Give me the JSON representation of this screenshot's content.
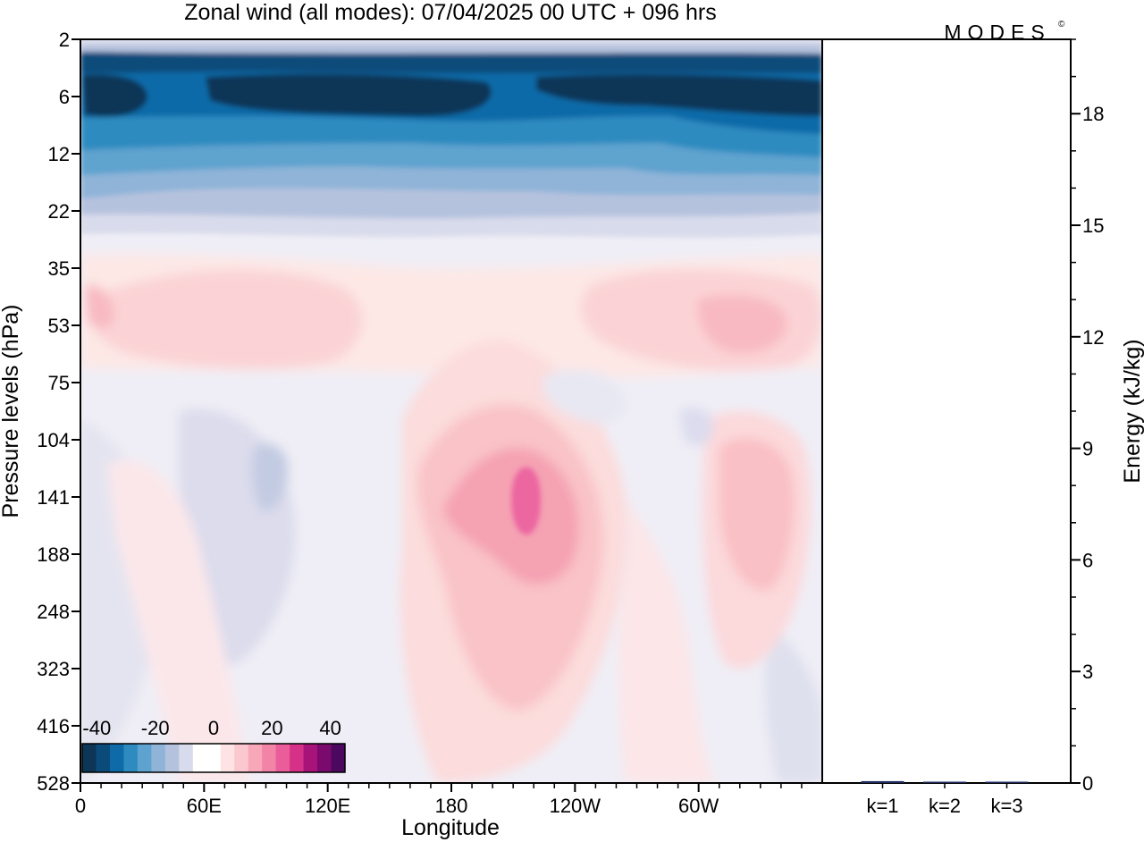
{
  "title": "Zonal wind (all modes):  07/04/2025  00 UTC  + 096 hrs",
  "brand": "MODES",
  "brand_mark": "©",
  "chart_data": [
    {
      "type": "heatmap",
      "title": "Zonal wind (all modes):  07/04/2025  00 UTC  + 096 hrs",
      "xlabel": "Longitude",
      "ylabel": "Pressure levels (hPa)",
      "x_ticks": [
        "0",
        "60E",
        "120E",
        "180",
        "120W",
        "60W"
      ],
      "x_tick_degrees": [
        0,
        60,
        120,
        180,
        240,
        300
      ],
      "x_range_degrees": [
        0,
        360
      ],
      "y_ticks": [
        "2",
        "6",
        "12",
        "22",
        "35",
        "53",
        "75",
        "104",
        "141",
        "188",
        "248",
        "323",
        "416",
        "528"
      ],
      "y_scale": "ordinal pressure levels, 2 hPa at top, 528 hPa at bottom",
      "colorbar": {
        "labels": [
          "-40",
          "-20",
          "0",
          "20",
          "40"
        ],
        "min": -45,
        "max": 45,
        "step": 5,
        "colors": [
          "#0d3556",
          "#0b4b7a",
          "#0e6ba8",
          "#2e8bc0",
          "#5ea3cf",
          "#8fb4d8",
          "#b5c2de",
          "#d8dbeb",
          "#ffffff",
          "#ffffff",
          "#fde3e4",
          "#fbc8cf",
          "#f8a7b8",
          "#f284a8",
          "#ea5c9a",
          "#d53189",
          "#a8137a",
          "#7a0a6e",
          "#4c075f"
        ]
      },
      "features": [
        {
          "description": "easterly jet in upper stratosphere",
          "pressure_hPa": 6,
          "value": -40
        },
        {
          "description": "westerly core near 160W",
          "pressure_hPa": 141,
          "longitude_deg": 200,
          "value": 20
        },
        {
          "description": "westerly maximum near 45W",
          "pressure_hPa": 141,
          "longitude_deg": 315,
          "value": 10
        }
      ]
    },
    {
      "type": "bar",
      "ylabel": "Energy (kJ/kg)",
      "categories": [
        "k=1",
        "k=2",
        "k=3"
      ],
      "values": [
        0.05,
        0.02,
        0.03
      ],
      "ylim": [
        0,
        20
      ],
      "y_ticks": [
        "0",
        "3",
        "6",
        "9",
        "12",
        "15",
        "18"
      ],
      "bar_color": "#1f2a60"
    }
  ]
}
